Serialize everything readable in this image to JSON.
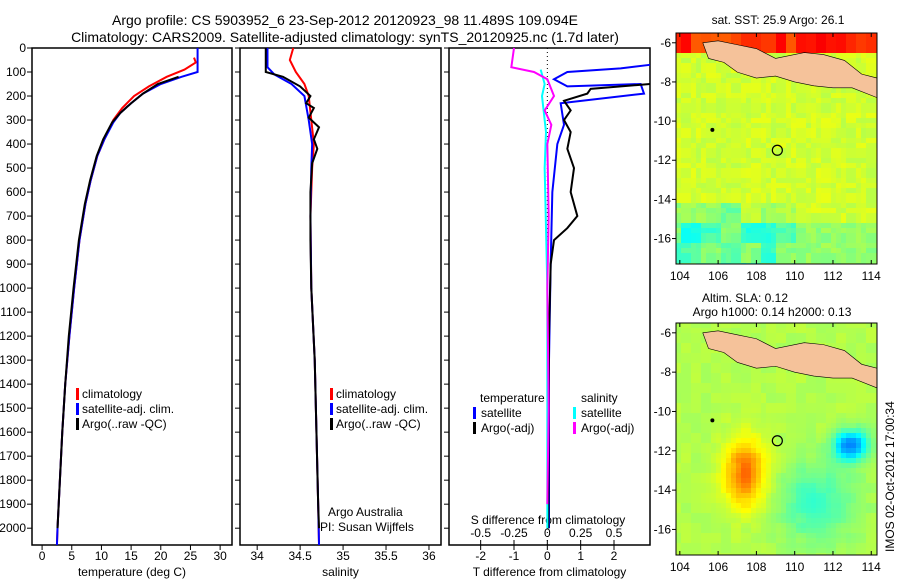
{
  "title": {
    "line1": "Argo profile: CS 5903952_6 23-Sep-2012 20120923_98 11.489S 109.094E",
    "line2": "Climatology: CARS2009. Satellite-adjusted climatology: synTS_20120925.nc (1.7d later)"
  },
  "colors": {
    "climatology": "#ff0000",
    "satellite": "#0000ff",
    "argo": "#000000",
    "sal_satellite": "#00ffff",
    "sal_argo": "#ff00ff",
    "land": "#f5c29a"
  },
  "chart_data": [
    {
      "type": "line",
      "id": "temperature",
      "xlabel": "temperature (deg C)",
      "xlim": [
        -1.7,
        32
      ],
      "xticks": [
        0,
        5,
        10,
        15,
        20,
        25,
        30
      ],
      "ylim": [
        2070,
        0
      ],
      "yticks": [
        0,
        100,
        200,
        300,
        400,
        500,
        600,
        700,
        800,
        900,
        1000,
        1100,
        1200,
        1300,
        1400,
        1500,
        1600,
        1700,
        1800,
        1900,
        2000
      ],
      "legend": [
        "climatology",
        "satellite-adj. clim.",
        "Argo(..raw -QC)"
      ],
      "series": [
        {
          "name": "climatology",
          "color": "#ff0000",
          "points": [
            [
              25.6,
              40
            ],
            [
              25.9,
              60
            ],
            [
              24,
              90
            ],
            [
              21,
              120
            ],
            [
              18,
              160
            ],
            [
              15.5,
              200
            ],
            [
              13.5,
              250
            ],
            [
              12,
              300
            ],
            [
              10.5,
              380
            ],
            [
              9.3,
              450
            ],
            [
              8.2,
              550
            ],
            [
              7.3,
              650
            ],
            [
              6.3,
              800
            ],
            [
              5.4,
              1000
            ],
            [
              4.6,
              1200
            ],
            [
              3.9,
              1400
            ],
            [
              3.4,
              1600
            ],
            [
              3,
              1800
            ],
            [
              2.6,
              2000
            ],
            [
              2.5,
              2070
            ]
          ]
        },
        {
          "name": "satellite-adj. clim.",
          "color": "#0000ff",
          "points": [
            [
              26.2,
              0
            ],
            [
              26.2,
              100
            ],
            [
              23.5,
              120
            ],
            [
              20,
              150
            ],
            [
              17,
              190
            ],
            [
              15,
              230
            ],
            [
              13.2,
              270
            ],
            [
              12,
              310
            ],
            [
              10.5,
              380
            ],
            [
              9.3,
              450
            ],
            [
              8.2,
              550
            ],
            [
              7.3,
              650
            ],
            [
              6.3,
              800
            ],
            [
              5.4,
              1000
            ],
            [
              4.6,
              1200
            ],
            [
              3.9,
              1400
            ],
            [
              3.4,
              1600
            ],
            [
              3,
              1800
            ],
            [
              2.6,
              2000
            ],
            [
              2.5,
              2070
            ]
          ]
        },
        {
          "name": "Argo(..raw -QC)",
          "color": "#000000",
          "points": [
            [
              23,
              120
            ],
            [
              19.5,
              150
            ],
            [
              17,
              190
            ],
            [
              15,
              230
            ],
            [
              13.2,
              270
            ],
            [
              11.8,
              310
            ],
            [
              10.3,
              380
            ],
            [
              9.2,
              450
            ],
            [
              8.1,
              550
            ],
            [
              7.2,
              650
            ],
            [
              6.2,
              800
            ],
            [
              5.3,
              1000
            ],
            [
              4.5,
              1200
            ],
            [
              3.9,
              1400
            ],
            [
              3.4,
              1600
            ],
            [
              3,
              1800
            ],
            [
              2.6,
              2000
            ]
          ]
        }
      ]
    },
    {
      "type": "line",
      "id": "salinity",
      "xlabel": "salinity",
      "xlim": [
        33.8,
        36.14
      ],
      "xticks": [
        34,
        34.5,
        35,
        35.5,
        36
      ],
      "ylim": [
        2070,
        0
      ],
      "legend": [
        "climatology",
        "satellite-adj. clim.",
        "Argo(..raw -QC)"
      ],
      "annotation": [
        "Argo Australia",
        "PI: Susan Wijffels"
      ],
      "series": [
        {
          "name": "climatology",
          "color": "#ff0000",
          "points": [
            [
              34.42,
              0
            ],
            [
              34.38,
              50
            ],
            [
              34.45,
              100
            ],
            [
              34.55,
              150
            ],
            [
              34.6,
              200
            ],
            [
              34.63,
              300
            ],
            [
              34.66,
              400
            ],
            [
              34.64,
              500
            ],
            [
              34.62,
              700
            ],
            [
              34.63,
              1000
            ],
            [
              34.67,
              1300
            ],
            [
              34.69,
              1600
            ],
            [
              34.71,
              1900
            ],
            [
              34.72,
              2070
            ]
          ]
        },
        {
          "name": "satellite-adj. clim.",
          "color": "#0000ff",
          "points": [
            [
              34.12,
              0
            ],
            [
              34.12,
              80
            ],
            [
              34.2,
              110
            ],
            [
              34.4,
              150
            ],
            [
              34.55,
              200
            ],
            [
              34.6,
              300
            ],
            [
              34.64,
              400
            ],
            [
              34.63,
              500
            ],
            [
              34.62,
              700
            ],
            [
              34.63,
              1000
            ],
            [
              34.67,
              1300
            ],
            [
              34.69,
              1600
            ],
            [
              34.71,
              1900
            ],
            [
              34.72,
              2070
            ]
          ]
        },
        {
          "name": "Argo(..raw -QC)",
          "color": "#000000",
          "points": [
            [
              34.1,
              0
            ],
            [
              34.1,
              100
            ],
            [
              34.3,
              120
            ],
            [
              34.5,
              160
            ],
            [
              34.62,
              200
            ],
            [
              34.57,
              230
            ],
            [
              34.66,
              250
            ],
            [
              34.6,
              290
            ],
            [
              34.72,
              330
            ],
            [
              34.66,
              380
            ],
            [
              34.7,
              420
            ],
            [
              34.64,
              480
            ],
            [
              34.62,
              600
            ],
            [
              34.62,
              800
            ],
            [
              34.63,
              1000
            ],
            [
              34.67,
              1300
            ],
            [
              34.69,
              1600
            ],
            [
              34.71,
              1900
            ],
            [
              34.72,
              2000
            ]
          ]
        }
      ]
    },
    {
      "type": "line",
      "id": "difference",
      "xlabel": "T difference from climatology",
      "xlabel_top": "S difference from climatology",
      "xlim": [
        -2.95,
        3.08
      ],
      "xticks": [
        -2,
        -1,
        0,
        1,
        2
      ],
      "sticks": [
        -0.5,
        -0.25,
        0,
        0.25,
        0.5
      ],
      "ylim": [
        2070,
        0
      ],
      "legend_temperature": {
        "title": "temperature",
        "items": [
          "satellite",
          "Argo(-adj)"
        ]
      },
      "legend_salinity": {
        "title": "salinity",
        "items": [
          "satellite",
          "Argo(-adj)"
        ]
      },
      "series": [
        {
          "name": "T satellite",
          "color": "#0000ff",
          "kind": "T",
          "points": [
            [
              3.1,
              70
            ],
            [
              2.2,
              85
            ],
            [
              0.6,
              100
            ],
            [
              0.2,
              130
            ],
            [
              0.6,
              160
            ],
            [
              2.8,
              150
            ],
            [
              2.9,
              190
            ],
            [
              0.4,
              230
            ],
            [
              0.5,
              320
            ],
            [
              0.3,
              400
            ],
            [
              0.15,
              600
            ],
            [
              0.1,
              900
            ],
            [
              0.05,
              1300
            ],
            [
              0.05,
              2000
            ]
          ]
        },
        {
          "name": "T Argo(-adj)",
          "color": "#000000",
          "kind": "T",
          "points": [
            [
              3.1,
              150
            ],
            [
              1.3,
              170
            ],
            [
              1.2,
              190
            ],
            [
              0.5,
              220
            ],
            [
              0.7,
              260
            ],
            [
              0.5,
              300
            ],
            [
              0.7,
              350
            ],
            [
              0.6,
              420
            ],
            [
              0.8,
              500
            ],
            [
              0.7,
              600
            ],
            [
              0.9,
              700
            ],
            [
              0.6,
              750
            ],
            [
              0.2,
              800
            ],
            [
              0.1,
              900
            ],
            [
              0.05,
              1200
            ],
            [
              0.03,
              2000
            ]
          ]
        },
        {
          "name": "S satellite",
          "color": "#00ffff",
          "kind": "S",
          "points": [
            [
              -0.05,
              90
            ],
            [
              -0.02,
              150
            ],
            [
              -0.04,
              200
            ],
            [
              -0.03,
              250
            ],
            [
              -0.01,
              350
            ],
            [
              -0.02,
              500
            ],
            [
              0,
              1000
            ],
            [
              0,
              2000
            ]
          ]
        },
        {
          "name": "S Argo(-adj)",
          "color": "#ff00ff",
          "kind": "S",
          "points": [
            [
              -0.25,
              0
            ],
            [
              -0.27,
              80
            ],
            [
              -0.1,
              100
            ],
            [
              0,
              130
            ],
            [
              0.05,
              200
            ],
            [
              -0.02,
              260
            ],
            [
              0.03,
              320
            ],
            [
              0,
              400
            ],
            [
              0.01,
              700
            ],
            [
              0,
              1000
            ],
            [
              0.01,
              1500
            ],
            [
              0,
              1900
            ]
          ]
        }
      ]
    },
    {
      "type": "heatmap",
      "id": "sst-map",
      "title": "sat. SST: 25.9  Argo: 26.1",
      "xticks": [
        104,
        106,
        108,
        110,
        112,
        114
      ],
      "yticks": [
        -6,
        -8,
        -10,
        -12,
        -14,
        -16
      ],
      "xlim": [
        103.8,
        114.3
      ],
      "ylim": [
        -17.3,
        -5.5
      ],
      "profile_location": [
        109.094,
        -11.489
      ]
    },
    {
      "type": "heatmap",
      "id": "sla-map",
      "title": "Altim. SLA: 0.12",
      "subtitle": "Argo h1000: 0.14 h2000: 0.13",
      "xticks": [
        104,
        106,
        108,
        110,
        112,
        114
      ],
      "yticks": [
        -6,
        -8,
        -10,
        -12,
        -14,
        -16
      ],
      "xlim": [
        103.8,
        114.3
      ],
      "ylim": [
        -17.3,
        -5.5
      ],
      "profile_location": [
        109.094,
        -11.489
      ]
    }
  ],
  "footer": {
    "stamp": "IMOS 02-Oct-2012 17:00:34"
  }
}
